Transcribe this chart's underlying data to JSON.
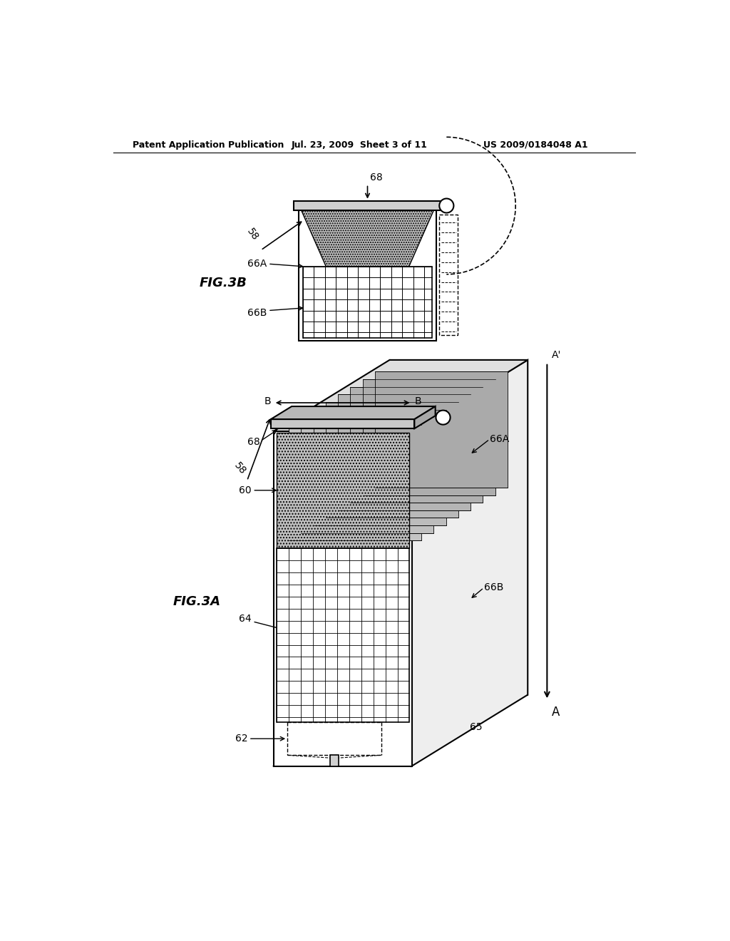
{
  "background_color": "#ffffff",
  "header_text": "Patent Application Publication",
  "header_date": "Jul. 23, 2009  Sheet 3 of 11",
  "header_patent": "US 2009/0184048 A1",
  "fig3b_label": "FIG.3B",
  "fig3a_label": "FIG.3A",
  "line_color": "#000000",
  "gray_light": "#e8e8e8",
  "gray_mid": "#c8c8c8",
  "gray_dark": "#a0a0a0"
}
